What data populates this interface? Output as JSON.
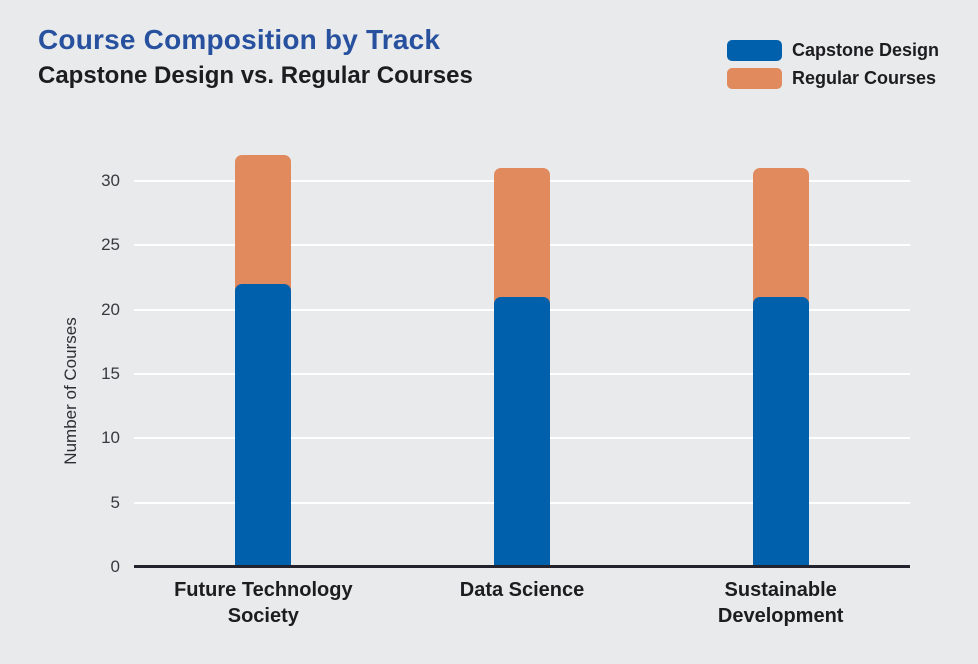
{
  "page": {
    "background": "#e9eaec"
  },
  "header": {
    "title": "Course Composition by Track",
    "subtitle": "Capstone Design vs. Regular Courses"
  },
  "legend": {
    "items": [
      {
        "label": "Capstone Design",
        "color": "#0060ac"
      },
      {
        "label": "Regular Courses",
        "color": "#e18a5e"
      }
    ]
  },
  "chart_data": {
    "type": "bar",
    "stacked": true,
    "title": "Course Composition by Track",
    "subtitle": "Capstone Design vs. Regular Courses",
    "categories": [
      "Future Technology Society",
      "Data Science",
      "Sustainable Development"
    ],
    "series": [
      {
        "name": "Capstone Design",
        "color": "#0060ac",
        "values": [
          22,
          21,
          21
        ]
      },
      {
        "name": "Regular Courses",
        "color": "#e18a5e",
        "values": [
          10,
          10,
          10
        ]
      }
    ],
    "totals": [
      32,
      31,
      31
    ],
    "xlabel": "",
    "ylabel": "Number of Courses",
    "yticks": [
      0,
      5,
      10,
      15,
      20,
      25,
      30
    ],
    "ylim": [
      0,
      32
    ],
    "grid": true,
    "gridline_color": "#ffffff",
    "axis_color": "#23232e",
    "legend_position": "top-right"
  }
}
